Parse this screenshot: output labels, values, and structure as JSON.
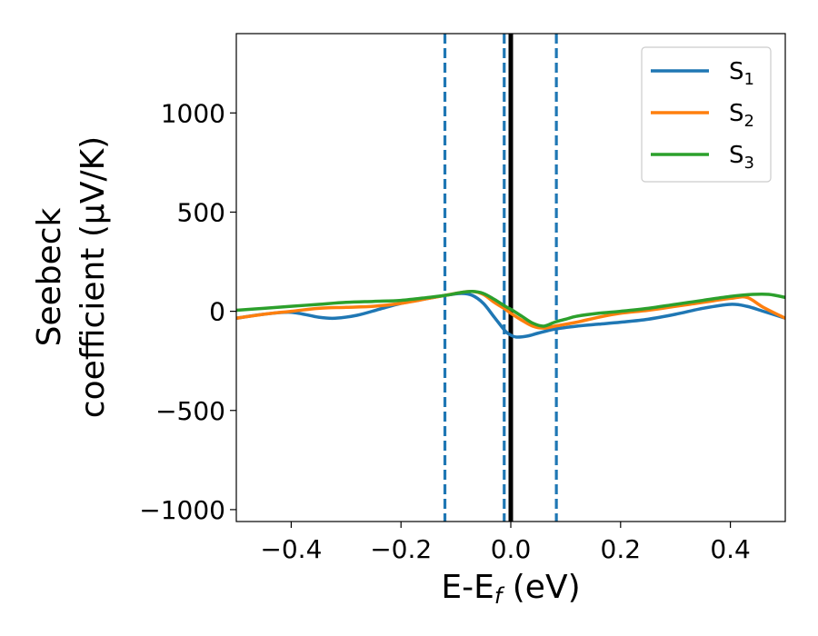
{
  "chart_data": {
    "type": "line",
    "xlabel": "E-E",
    "xlabel_sub": "f",
    "xlabel_unit": " (eV)",
    "ylabel_line1": "Seebeck",
    "ylabel_line2": "coefficient  (μV/K)",
    "xlim": [
      -0.5,
      0.5
    ],
    "ylim": [
      -1060,
      1400
    ],
    "x_ticks": [
      -0.4,
      -0.2,
      0.0,
      0.2,
      0.4
    ],
    "x_tick_labels": [
      "−0.4",
      "−0.2",
      "0.0",
      "0.2",
      "0.4"
    ],
    "y_ticks": [
      -1000,
      -500,
      0,
      500,
      1000
    ],
    "y_tick_labels": [
      "−1000",
      "−500",
      "0",
      "500",
      "1000"
    ],
    "grid": false,
    "legend_position": "top-right",
    "vlines": [
      {
        "x": -0.12,
        "style": "dashed",
        "color": "#1f77b4"
      },
      {
        "x": -0.012,
        "style": "dashed",
        "color": "#1f77b4"
      },
      {
        "x": 0.0,
        "style": "solid",
        "color": "#000000"
      },
      {
        "x": 0.083,
        "style": "dashed",
        "color": "#1f77b4"
      }
    ],
    "series": [
      {
        "name": "S",
        "sub": "1",
        "color": "#1f77b4",
        "x": [
          -0.5,
          -0.45,
          -0.4,
          -0.35,
          -0.32,
          -0.28,
          -0.24,
          -0.2,
          -0.16,
          -0.12,
          -0.09,
          -0.07,
          -0.05,
          -0.03,
          -0.01,
          0.0,
          0.01,
          0.03,
          0.05,
          0.08,
          0.12,
          0.16,
          0.2,
          0.25,
          0.3,
          0.35,
          0.4,
          0.43,
          0.46,
          0.5
        ],
        "y": [
          -35,
          -15,
          -5,
          -30,
          -35,
          -20,
          10,
          40,
          60,
          80,
          90,
          80,
          40,
          -30,
          -100,
          -120,
          -130,
          -125,
          -110,
          -90,
          -75,
          -65,
          -55,
          -40,
          -15,
          15,
          35,
          25,
          0,
          -35
        ]
      },
      {
        "name": "S",
        "sub": "2",
        "color": "#ff7f0e",
        "x": [
          -0.5,
          -0.45,
          -0.4,
          -0.35,
          -0.3,
          -0.25,
          -0.2,
          -0.15,
          -0.12,
          -0.09,
          -0.07,
          -0.05,
          -0.03,
          -0.01,
          0.0,
          0.02,
          0.04,
          0.06,
          0.08,
          0.12,
          0.16,
          0.2,
          0.25,
          0.3,
          0.35,
          0.4,
          0.43,
          0.46,
          0.5
        ],
        "y": [
          -35,
          -15,
          0,
          15,
          20,
          25,
          40,
          65,
          80,
          95,
          100,
          85,
          45,
          10,
          -10,
          -45,
          -75,
          -85,
          -75,
          -55,
          -30,
          -10,
          5,
          25,
          45,
          65,
          70,
          20,
          -35
        ]
      },
      {
        "name": "S",
        "sub": "3",
        "color": "#2ca02c",
        "x": [
          -0.5,
          -0.45,
          -0.4,
          -0.35,
          -0.3,
          -0.25,
          -0.2,
          -0.15,
          -0.12,
          -0.09,
          -0.07,
          -0.05,
          -0.03,
          -0.01,
          0.0,
          0.02,
          0.04,
          0.06,
          0.08,
          0.1,
          0.12,
          0.16,
          0.2,
          0.25,
          0.3,
          0.35,
          0.4,
          0.44,
          0.47,
          0.5
        ],
        "y": [
          5,
          15,
          25,
          35,
          45,
          50,
          55,
          70,
          80,
          95,
          100,
          90,
          60,
          25,
          10,
          -25,
          -60,
          -75,
          -55,
          -40,
          -25,
          -10,
          0,
          15,
          35,
          55,
          75,
          85,
          85,
          70
        ]
      }
    ]
  }
}
